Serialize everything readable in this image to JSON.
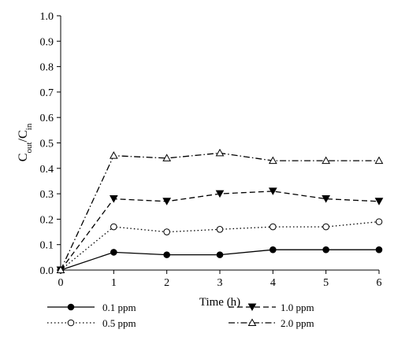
{
  "chart_data": {
    "type": "line",
    "xlabel": "Time (h)",
    "ylabel_main": "C",
    "ylabel_sub1": "out",
    "ylabel_sep": "/C",
    "ylabel_sub2": "in",
    "x": [
      0,
      1,
      2,
      3,
      4,
      5,
      6
    ],
    "xlim": [
      0,
      6
    ],
    "ylim": [
      0,
      1.0
    ],
    "x_ticks": [
      "0",
      "1",
      "2",
      "3",
      "4",
      "5",
      "6"
    ],
    "y_ticks": [
      "0.0",
      "0.1",
      "0.2",
      "0.3",
      "0.4",
      "0.5",
      "0.6",
      "0.7",
      "0.8",
      "0.9",
      "1.0"
    ],
    "grid": false,
    "legend_position": "bottom",
    "series": [
      {
        "name": "0.1 ppm",
        "values": [
          0,
          0.07,
          0.06,
          0.06,
          0.08,
          0.08,
          0.08
        ],
        "marker": "filled-circle",
        "line": "solid"
      },
      {
        "name": "0.5 ppm",
        "values": [
          0,
          0.17,
          0.15,
          0.16,
          0.17,
          0.17,
          0.19
        ],
        "marker": "open-circle",
        "line": "dotted"
      },
      {
        "name": "1.0 ppm",
        "values": [
          0,
          0.28,
          0.27,
          0.3,
          0.31,
          0.28,
          0.27
        ],
        "marker": "filled-triangle-down",
        "line": "dashed"
      },
      {
        "name": "2.0 ppm",
        "values": [
          0,
          0.45,
          0.44,
          0.46,
          0.43,
          0.43,
          0.43
        ],
        "marker": "open-triangle-up",
        "line": "dash-dot"
      }
    ]
  }
}
